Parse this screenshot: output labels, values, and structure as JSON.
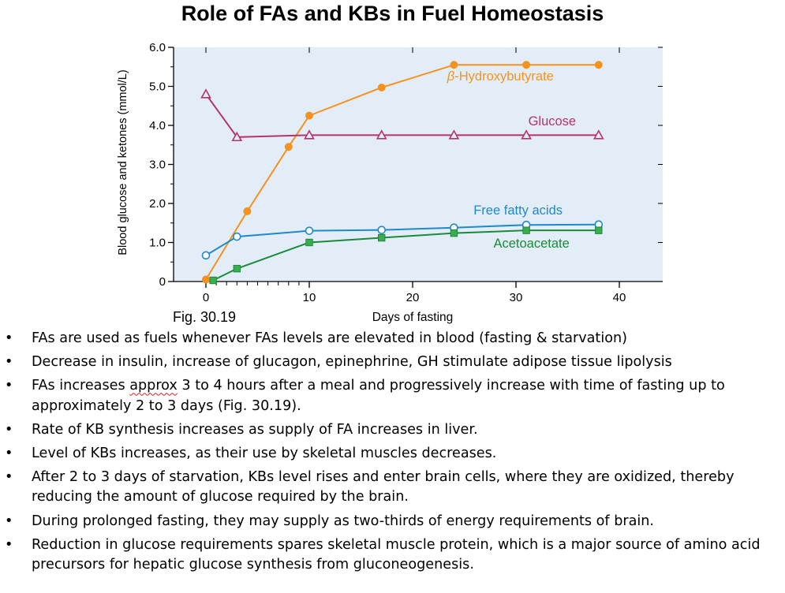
{
  "slide_title": "Role of FAs and KBs in Fuel Homeostasis",
  "figure_caption": "Fig. 30.19",
  "colors": {
    "plot_background": "#e3edf8",
    "beta_hydroxybutyrate": "#f5921e",
    "glucose": "#b5326f",
    "free_fatty_acids": "#1f89c9",
    "acetoacetate": "#1a8a3a",
    "acetoacetate_marker": "#3aae4f"
  },
  "chart_data": {
    "type": "line",
    "title": "",
    "xlabel": "Days of fasting",
    "ylabel": "Blood glucose and ketones (mmol/L)",
    "xlim": [
      0,
      40
    ],
    "ylim": [
      0,
      6
    ],
    "x_ticks": [
      "0",
      "10",
      "20",
      "30",
      "40"
    ],
    "y_ticks": [
      "0",
      "1.0",
      "2.0",
      "3.0",
      "4.0",
      "5.0",
      "6.0"
    ],
    "grid": false,
    "series": [
      {
        "name": "β-Hydroxybutyrate",
        "marker": "filled-circle",
        "x": [
          0,
          4,
          8,
          10,
          17,
          24,
          31,
          38
        ],
        "y": [
          0.05,
          1.8,
          3.45,
          4.25,
          4.97,
          5.55,
          5.55,
          5.55
        ]
      },
      {
        "name": "Glucose",
        "marker": "open-triangle",
        "x": [
          0,
          3,
          10,
          17,
          24,
          31,
          38
        ],
        "y": [
          4.8,
          3.7,
          3.75,
          3.75,
          3.75,
          3.75,
          3.75
        ]
      },
      {
        "name": "Free fatty acids",
        "marker": "open-circle",
        "x": [
          0,
          3,
          10,
          17,
          24,
          31,
          38
        ],
        "y": [
          0.67,
          1.15,
          1.3,
          1.32,
          1.38,
          1.45,
          1.46
        ]
      },
      {
        "name": "Acetoacetate",
        "marker": "filled-square",
        "x": [
          0.7,
          3,
          10,
          17,
          24,
          31,
          38
        ],
        "y": [
          0.03,
          0.33,
          1.0,
          1.12,
          1.24,
          1.31,
          1.31
        ]
      }
    ]
  },
  "bullets": [
    {
      "text": "FAs are used as fuels whenever FAs levels are elevated in blood (fasting & starvation)"
    },
    {
      "text": "Decrease in insulin, increase of glucagon, epinephrine, GH stimulate adipose tissue lipolysis"
    },
    {
      "text_before": "FAs increases ",
      "text_underlined": "approx",
      "text_after": " 3 to 4 hours after a meal and progressively increase with time of fasting up to approximately 2 to 3 days (Fig. 30.19)."
    },
    {
      "text": "Rate of KB synthesis increases as supply of FA increases in liver."
    },
    {
      "text": "Level of KBs increases, as their use by skeletal muscles decreases."
    },
    {
      "text": "After 2 to 3 days of starvation, KBs level rises and enter brain cells, where they are oxidized, thereby reducing the amount of glucose required by the brain."
    },
    {
      "text": "During prolonged fasting, they may supply as two-thirds of energy requirements of  brain."
    },
    {
      "text": "Reduction in glucose requirements spares skeletal muscle protein, which is a major source of amino acid precursors for hepatic glucose synthesis from gluconeogenesis."
    }
  ]
}
